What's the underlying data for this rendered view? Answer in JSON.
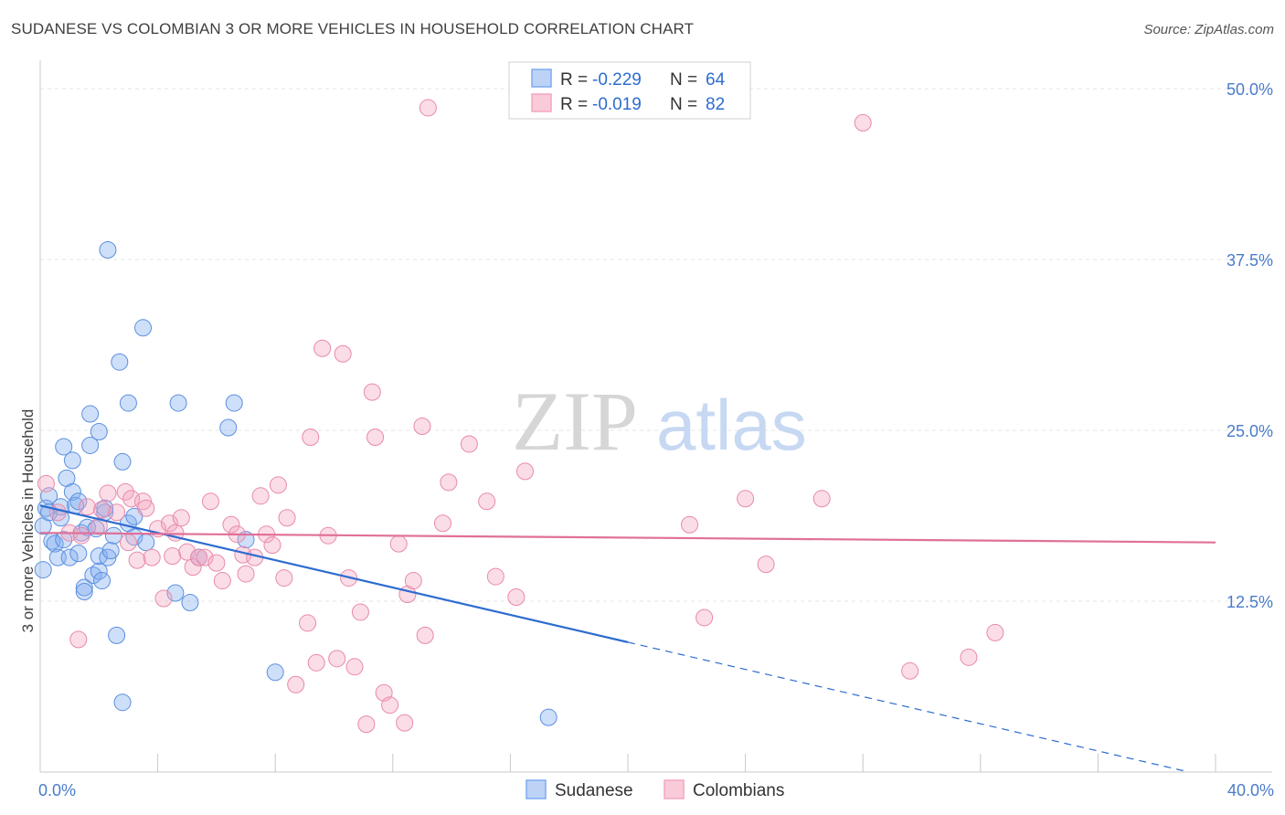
{
  "header": {
    "title": "SUDANESE VS COLOMBIAN 3 OR MORE VEHICLES IN HOUSEHOLD CORRELATION CHART",
    "source": "Source: ZipAtlas.com"
  },
  "watermark": {
    "zip": "ZIP",
    "atlas": "atlas"
  },
  "legend_box": {
    "rows": [
      {
        "r_label": "R =",
        "r_value": "-0.229",
        "n_label": "N =",
        "n_value": "64",
        "color": "#7eaaf0"
      },
      {
        "r_label": "R =",
        "r_value": "-0.019",
        "n_label": "N =",
        "n_value": "82",
        "color": "#f4a6bf"
      }
    ]
  },
  "bottom_legend": [
    {
      "label": "Sudanese",
      "color": "#7eaaf0"
    },
    {
      "label": "Colombians",
      "color": "#f4a6bf"
    }
  ],
  "chart_data": {
    "type": "scatter",
    "ylabel": "3 or more Vehicles in Household",
    "xlim": [
      0,
      40
    ],
    "ylim": [
      0,
      50
    ],
    "x_tick_labels": [
      {
        "value": 0,
        "label": "0.0%"
      },
      {
        "value": 40,
        "label": "40.0%"
      }
    ],
    "y_tick_labels": [
      {
        "value": 12.5,
        "label": "12.5%"
      },
      {
        "value": 25,
        "label": "25.0%"
      },
      {
        "value": 37.5,
        "label": "37.5%"
      },
      {
        "value": 50,
        "label": "50.0%"
      }
    ],
    "series": [
      {
        "name": "Sudanese",
        "color": "#7eaaf0",
        "stroke": "#5b8fe0",
        "trend": {
          "x0": 0,
          "y0": 19.5,
          "x1": 20,
          "y1": 9.5,
          "dash_to_x": 38.9,
          "dash_to_y": 0.1,
          "color": "#2d6cd0"
        },
        "points": [
          [
            0.1,
            14.8
          ],
          [
            0.1,
            18.0
          ],
          [
            0.2,
            19.3
          ],
          [
            0.3,
            20.2
          ],
          [
            0.3,
            19.0
          ],
          [
            0.4,
            16.9
          ],
          [
            0.5,
            16.7
          ],
          [
            0.6,
            15.7
          ],
          [
            0.7,
            19.4
          ],
          [
            0.7,
            18.6
          ],
          [
            0.8,
            17.0
          ],
          [
            0.8,
            23.8
          ],
          [
            0.9,
            21.5
          ],
          [
            1.0,
            15.7
          ],
          [
            1.1,
            20.5
          ],
          [
            1.1,
            22.8
          ],
          [
            1.2,
            19.5
          ],
          [
            1.3,
            16.0
          ],
          [
            1.3,
            19.8
          ],
          [
            1.4,
            17.5
          ],
          [
            1.5,
            13.5
          ],
          [
            1.5,
            13.2
          ],
          [
            1.6,
            17.9
          ],
          [
            1.7,
            26.2
          ],
          [
            1.7,
            23.9
          ],
          [
            1.8,
            14.4
          ],
          [
            1.9,
            17.8
          ],
          [
            2.0,
            14.7
          ],
          [
            2.0,
            15.8
          ],
          [
            2.0,
            24.9
          ],
          [
            2.1,
            14.0
          ],
          [
            2.2,
            19.0
          ],
          [
            2.2,
            19.3
          ],
          [
            2.3,
            15.7
          ],
          [
            2.4,
            16.2
          ],
          [
            2.3,
            38.2
          ],
          [
            2.5,
            17.3
          ],
          [
            2.6,
            10.0
          ],
          [
            2.7,
            30.0
          ],
          [
            2.8,
            5.1
          ],
          [
            2.8,
            22.7
          ],
          [
            3.0,
            27.0
          ],
          [
            3.0,
            18.2
          ],
          [
            3.2,
            18.7
          ],
          [
            3.2,
            17.2
          ],
          [
            3.5,
            32.5
          ],
          [
            3.6,
            16.8
          ],
          [
            4.7,
            27.0
          ],
          [
            4.6,
            13.1
          ],
          [
            5.1,
            12.4
          ],
          [
            5.4,
            15.7
          ],
          [
            6.4,
            25.2
          ],
          [
            6.6,
            27.0
          ],
          [
            7.0,
            17.0
          ],
          [
            8.0,
            7.3
          ],
          [
            17.3,
            4.0
          ]
        ]
      },
      {
        "name": "Colombians",
        "color": "#f4a6bf",
        "stroke": "#e88aa8",
        "trend": {
          "x0": 0,
          "y0": 17.5,
          "x1": 40,
          "y1": 16.8,
          "color": "#e07098"
        },
        "points": [
          [
            0.2,
            21.1
          ],
          [
            0.6,
            19.0
          ],
          [
            1.0,
            17.5
          ],
          [
            1.3,
            9.7
          ],
          [
            1.4,
            17.3
          ],
          [
            1.6,
            19.4
          ],
          [
            2.0,
            18.0
          ],
          [
            2.1,
            19.2
          ],
          [
            2.3,
            20.4
          ],
          [
            2.6,
            19.0
          ],
          [
            2.9,
            20.5
          ],
          [
            3.0,
            16.8
          ],
          [
            3.1,
            20.0
          ],
          [
            3.3,
            15.5
          ],
          [
            3.5,
            19.8
          ],
          [
            3.6,
            19.3
          ],
          [
            3.8,
            15.7
          ],
          [
            4.0,
            17.8
          ],
          [
            4.2,
            12.7
          ],
          [
            4.4,
            18.2
          ],
          [
            4.5,
            15.8
          ],
          [
            4.6,
            17.5
          ],
          [
            4.8,
            18.6
          ],
          [
            5.0,
            16.1
          ],
          [
            5.2,
            15.0
          ],
          [
            5.4,
            15.7
          ],
          [
            5.6,
            15.7
          ],
          [
            5.8,
            19.8
          ],
          [
            6.0,
            15.3
          ],
          [
            6.2,
            14.0
          ],
          [
            6.5,
            18.1
          ],
          [
            6.7,
            17.4
          ],
          [
            6.9,
            15.9
          ],
          [
            7.0,
            14.5
          ],
          [
            7.3,
            15.7
          ],
          [
            7.5,
            20.2
          ],
          [
            7.7,
            17.4
          ],
          [
            7.9,
            16.6
          ],
          [
            8.1,
            21.0
          ],
          [
            8.3,
            14.2
          ],
          [
            8.4,
            18.6
          ],
          [
            8.7,
            6.4
          ],
          [
            9.1,
            10.9
          ],
          [
            9.2,
            24.5
          ],
          [
            9.4,
            8.0
          ],
          [
            9.6,
            31.0
          ],
          [
            9.8,
            17.3
          ],
          [
            10.1,
            8.3
          ],
          [
            10.3,
            30.6
          ],
          [
            10.5,
            14.2
          ],
          [
            10.7,
            7.7
          ],
          [
            10.9,
            11.7
          ],
          [
            11.1,
            3.5
          ],
          [
            11.3,
            27.8
          ],
          [
            11.4,
            24.5
          ],
          [
            11.7,
            5.8
          ],
          [
            11.9,
            4.9
          ],
          [
            12.2,
            16.7
          ],
          [
            12.4,
            3.6
          ],
          [
            12.5,
            13.0
          ],
          [
            12.7,
            14.0
          ],
          [
            13.0,
            25.3
          ],
          [
            13.1,
            10.0
          ],
          [
            13.2,
            48.6
          ],
          [
            13.7,
            18.2
          ],
          [
            13.9,
            21.2
          ],
          [
            14.6,
            24.0
          ],
          [
            15.2,
            19.8
          ],
          [
            15.5,
            14.3
          ],
          [
            16.2,
            12.8
          ],
          [
            16.5,
            22.0
          ],
          [
            22.1,
            18.1
          ],
          [
            22.6,
            11.3
          ],
          [
            24.0,
            20.0
          ],
          [
            24.7,
            15.2
          ],
          [
            26.6,
            20.0
          ],
          [
            28.0,
            47.5
          ],
          [
            29.6,
            7.4
          ],
          [
            31.6,
            8.4
          ],
          [
            32.5,
            10.2
          ]
        ]
      }
    ]
  }
}
